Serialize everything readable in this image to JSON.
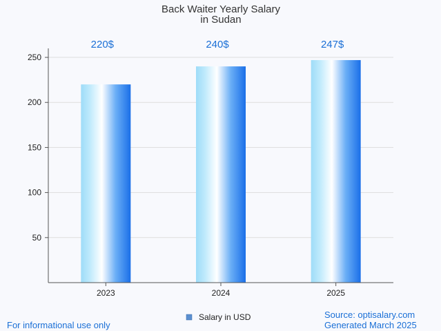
{
  "chart_data": {
    "type": "bar",
    "title": "Back Waiter Yearly Salary",
    "subtitle": "in Sudan",
    "categories": [
      "2023",
      "2024",
      "2025"
    ],
    "series": [
      {
        "name": "Salary in USD",
        "values": [
          220,
          240,
          247
        ]
      }
    ],
    "data_labels": [
      "220$",
      "240$",
      "247$"
    ],
    "ylim": [
      0,
      260
    ],
    "yticks": [
      50,
      100,
      150,
      200,
      250
    ],
    "xlabel": "",
    "ylabel": "",
    "grid": true,
    "legend_position": "bottom-center"
  },
  "footer": {
    "disclaimer": "For informational use only",
    "source": "Source: optisalary.com",
    "generated": "Generated March 2025"
  },
  "colors": {
    "label": "#1a6fd6",
    "bar_light": "#9edcf8",
    "bar_mid": "#ffffff",
    "bar_dark": "#1a6fe8",
    "grid": "#dddddd",
    "axis": "#555555",
    "legend_swatch": "#5b8fd0"
  }
}
